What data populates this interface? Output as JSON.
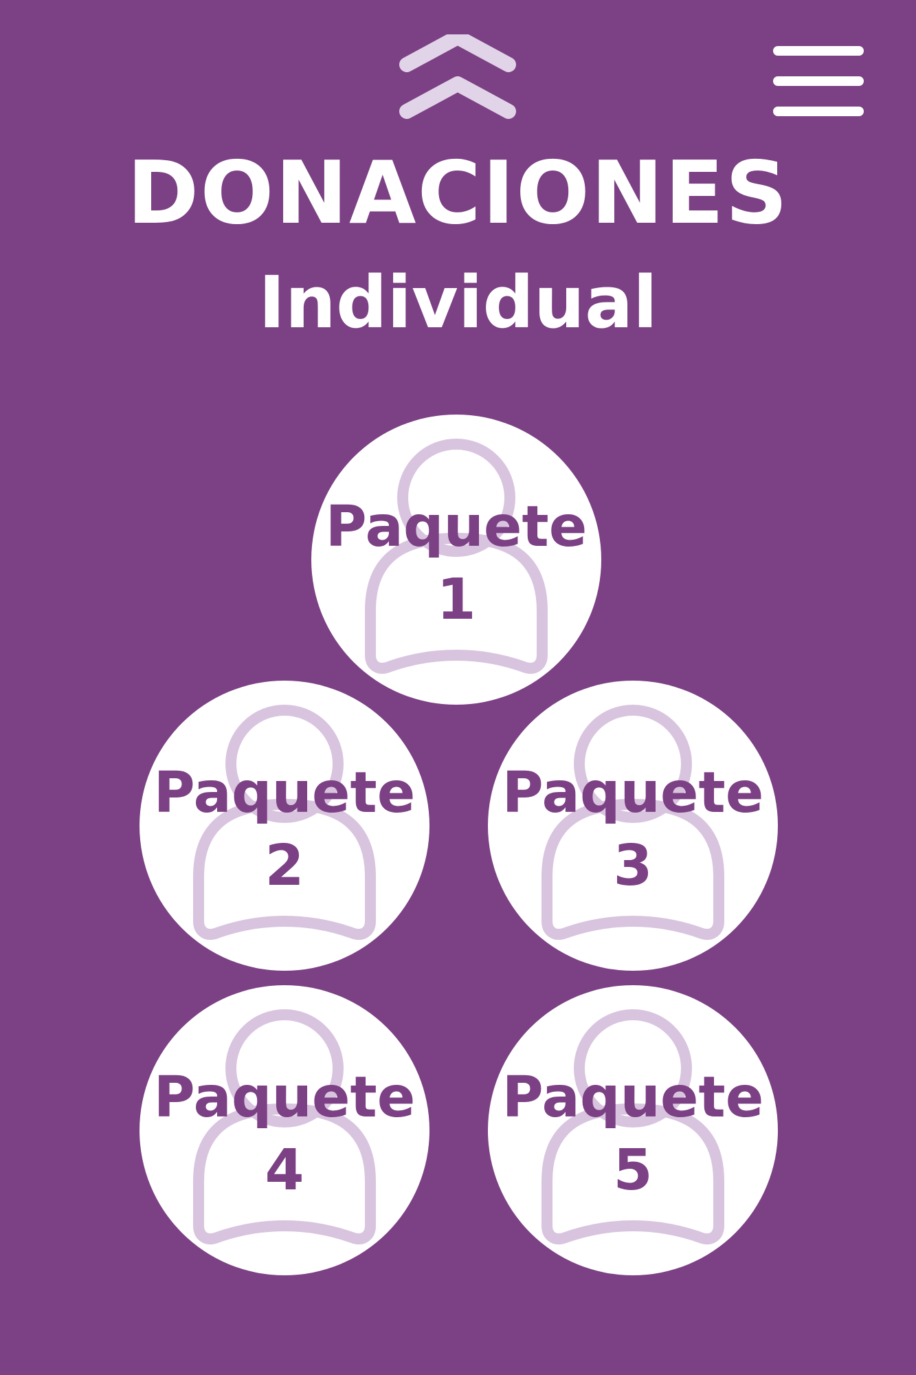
{
  "colors": {
    "background": "#7c4084",
    "circle": "#ffffff",
    "text_on_circle": "#7c4084",
    "icon_light": "#e2d4e8",
    "person_outline": "#d9c4df"
  },
  "header": {
    "up_icon": "double-chevron-up-icon",
    "menu_icon": "hamburger-menu-icon"
  },
  "title": {
    "main": "DONACIONES",
    "sub": "Individual"
  },
  "packages": [
    {
      "label": "Paquete",
      "number": "1"
    },
    {
      "label": "Paquete",
      "number": "2"
    },
    {
      "label": "Paquete",
      "number": "3"
    },
    {
      "label": "Paquete",
      "number": "4"
    },
    {
      "label": "Paquete",
      "number": "5"
    }
  ]
}
